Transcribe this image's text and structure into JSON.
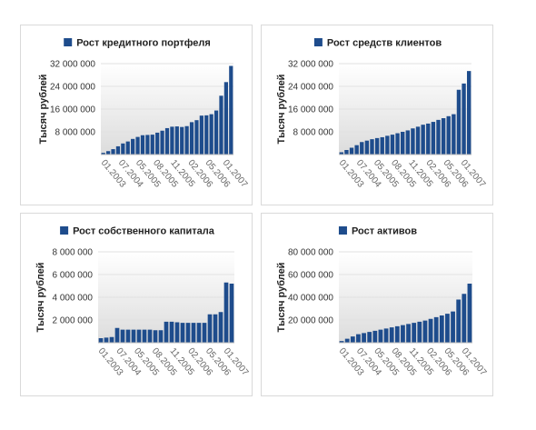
{
  "colors": {
    "bar": "#1e4c8c",
    "legend_square": "#1e4c8c",
    "grid": "#e1e1e1",
    "plot_gradient_top": "#ffffff",
    "plot_gradient_bottom": "#dcdcdc"
  },
  "chart_data": [
    {
      "type": "bar",
      "title": "Рост кредитного портфеля",
      "ylabel": "Тысяч рублей",
      "ylim": [
        0,
        32000000
      ],
      "y_ticks": [
        8000000,
        16000000,
        24000000,
        32000000
      ],
      "y_tick_labels": [
        "8 000 000",
        "16 000 000",
        "24 000 000",
        "32 000 000"
      ],
      "x_tick_labels": [
        "01.2003",
        "07.2004",
        "05.2005",
        "08.2005",
        "11.2005",
        "02.2006",
        "05.2006",
        "01.2007"
      ],
      "values": [
        600000,
        1200000,
        1900000,
        2900000,
        3900000,
        4600000,
        5500000,
        6200000,
        6800000,
        6900000,
        7000000,
        7700000,
        8400000,
        9300000,
        9800000,
        9900000,
        9700000,
        10000000,
        11400000,
        12100000,
        13700000,
        13800000,
        14200000,
        15500000,
        20700000,
        25500000,
        31200000
      ],
      "grid": true,
      "legend": "top-center"
    },
    {
      "type": "bar",
      "title": "Рост средств клиентов",
      "ylabel": "Тысяч рублей",
      "ylim": [
        0,
        32000000
      ],
      "y_ticks": [
        8000000,
        16000000,
        24000000,
        32000000
      ],
      "y_tick_labels": [
        "8 000 000",
        "16 000 000",
        "24 000 000",
        "32 000 000"
      ],
      "x_tick_labels": [
        "01.2003",
        "07.2004",
        "05.2005",
        "08.2005",
        "11.2005",
        "02.2006",
        "05.2006",
        "01.2007"
      ],
      "values": [
        800000,
        1600000,
        2400000,
        3300000,
        4400000,
        4900000,
        5400000,
        5800000,
        6100000,
        6600000,
        7000000,
        7500000,
        8000000,
        8500000,
        9200000,
        9800000,
        10500000,
        10900000,
        11500000,
        12200000,
        12800000,
        13500000,
        14200000,
        22800000,
        25000000,
        29400000
      ],
      "grid": true,
      "legend": "top-center"
    },
    {
      "type": "bar",
      "title": "Рост собственного капитала",
      "ylabel": "Тысяч рублей",
      "ylim": [
        0,
        8000000
      ],
      "y_ticks": [
        2000000,
        4000000,
        6000000,
        8000000
      ],
      "y_tick_labels": [
        "2 000 000",
        "4 000 000",
        "6 000 000",
        "8 000 000"
      ],
      "x_tick_labels": [
        "01.2003",
        "07.2004",
        "05.2005",
        "08.2005",
        "11.2005",
        "02.2006",
        "05.2006",
        "01.2007"
      ],
      "values": [
        400000,
        450000,
        500000,
        1300000,
        1150000,
        1150000,
        1150000,
        1150000,
        1150000,
        1150000,
        1100000,
        1100000,
        1850000,
        1850000,
        1800000,
        1750000,
        1750000,
        1750000,
        1750000,
        1750000,
        2500000,
        2500000,
        2700000,
        5300000,
        5200000
      ],
      "grid": true,
      "legend": "top-center"
    },
    {
      "type": "bar",
      "title": "Рост активов",
      "ylabel": "Тысяч рублей",
      "ylim": [
        0,
        80000000
      ],
      "y_ticks": [
        20000000,
        40000000,
        60000000,
        80000000
      ],
      "y_tick_labels": [
        "20 000 000",
        "40 000 000",
        "60 000 000",
        "80 000 000"
      ],
      "x_tick_labels": [
        "01.2003",
        "07.2004",
        "05.2005",
        "08.2005",
        "11.2005",
        "02.2006",
        "05.2006",
        "01.2007"
      ],
      "values": [
        1500000,
        3500000,
        5500000,
        7500000,
        8500000,
        9500000,
        10500000,
        11500000,
        12500000,
        13500000,
        14500000,
        15500000,
        16500000,
        17500000,
        18500000,
        19500000,
        21000000,
        22500000,
        24000000,
        25500000,
        27500000,
        38000000,
        43000000,
        52000000
      ],
      "grid": true,
      "legend": "top-center"
    }
  ]
}
